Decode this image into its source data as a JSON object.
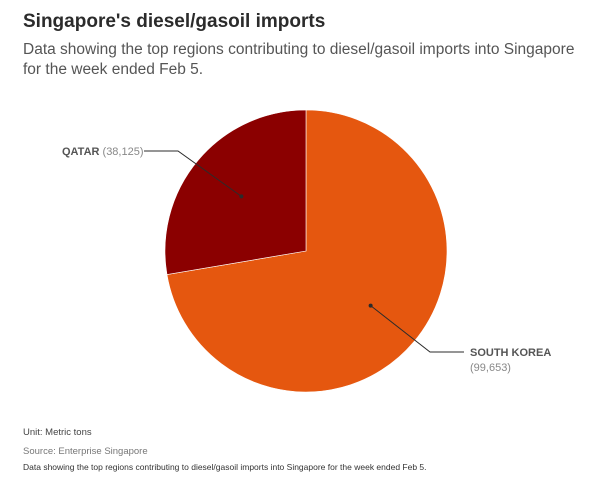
{
  "header": {
    "title": "Singapore's diesel/gasoil imports",
    "subtitle": "Data showing the top regions contributing to diesel/gasoil imports into Singapore for the week ended Feb 5."
  },
  "chart_data": {
    "type": "pie",
    "title": "Singapore's diesel/gasoil imports",
    "subtitle": "Data showing the top regions contributing to diesel/gasoil imports into Singapore for the week ended Feb 5.",
    "unit": "Metric tons",
    "slices": [
      {
        "label": "SOUTH KOREA",
        "value_label": "(99,653)",
        "value": 99653,
        "color": "#E5570F"
      },
      {
        "label": "QATAR",
        "value_label": "(38,125)",
        "value": 38125,
        "color": "#8B0000"
      }
    ]
  },
  "footer": {
    "unit": "Unit: Metric tons",
    "source": "Source: Enterprise Singapore",
    "caption": "Data showing the top regions contributing to diesel/gasoil imports into Singapore for the week ended Feb 5."
  }
}
